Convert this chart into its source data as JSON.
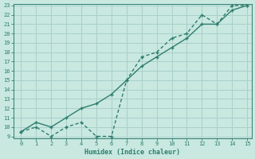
{
  "line1_x": [
    0,
    1,
    2,
    3,
    4,
    5,
    6,
    7,
    8,
    9,
    10,
    11,
    12,
    13,
    14,
    15
  ],
  "line1_y": [
    9.5,
    10,
    9,
    10,
    10.5,
    9,
    9,
    15,
    17.5,
    18,
    19.5,
    20,
    22,
    21,
    23,
    23
  ],
  "line2_x": [
    0,
    1,
    2,
    3,
    4,
    5,
    6,
    7,
    8,
    9,
    10,
    11,
    12,
    13,
    14,
    15
  ],
  "line2_y": [
    9.5,
    10.5,
    10,
    11,
    12,
    12.5,
    13.5,
    15,
    16.5,
    17.5,
    18.5,
    19.5,
    21,
    21,
    22.5,
    23
  ],
  "line_color": "#2e7d6e",
  "bg_color": "#c8e8e0",
  "grid_color": "#aacfca",
  "xlabel": "Humidex (Indice chaleur)",
  "ylim": [
    9,
    23
  ],
  "xlim": [
    -0.5,
    15.3
  ],
  "yticks": [
    9,
    10,
    11,
    12,
    13,
    14,
    15,
    16,
    17,
    18,
    19,
    20,
    21,
    22,
    23
  ],
  "xticks": [
    0,
    1,
    2,
    3,
    4,
    5,
    6,
    7,
    8,
    9,
    10,
    11,
    12,
    13,
    14,
    15
  ]
}
